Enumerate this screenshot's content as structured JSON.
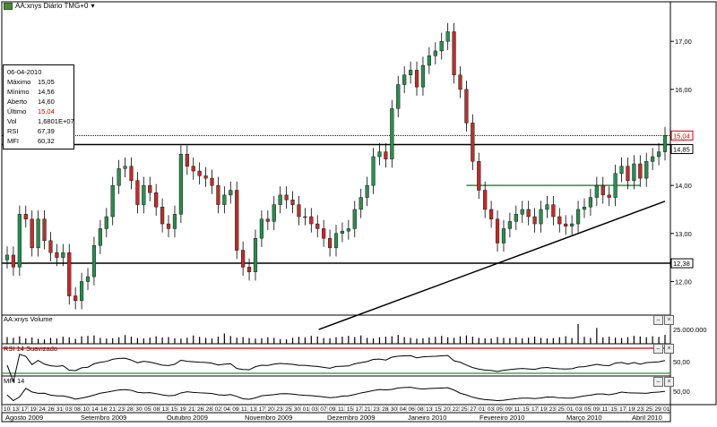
{
  "header": {
    "title": "AA:xnys Diário TMG+0",
    "dropdown_icon": "chevron-down-icon"
  },
  "info_box": {
    "date": "06-04-2010",
    "rows": [
      {
        "label": "Máximo",
        "value": "15,05"
      },
      {
        "label": "Mínimo",
        "value": "14,56"
      },
      {
        "label": "Aberto",
        "value": "14,60"
      },
      {
        "label": "Último",
        "value": "15,04",
        "highlight": true
      },
      {
        "label": "Vol",
        "value": "1,6801E+07"
      },
      {
        "label": "RSI",
        "value": "67,39"
      },
      {
        "label": "MFI",
        "value": "60,32"
      }
    ]
  },
  "panels": {
    "volume_title": "AA:xnys Volume",
    "volume_tick": "25.000.000",
    "rsi_title": "RSI 14 Suavizado",
    "rsi_tick": "50,00",
    "mfi_title": "MFI 14",
    "mfi_tick": "50,00"
  },
  "chart_data": {
    "type": "candlestick",
    "title": "AA:xnys Diário TMG+0",
    "y_ticks": [
      "17,00",
      "16,00",
      "15,00",
      "14,00",
      "13,00",
      "12,00"
    ],
    "ylim": [
      11.3,
      17.6
    ],
    "price_labels": {
      "last": "15,04",
      "resistance": "14,85",
      "support": "12,38"
    },
    "horizontal_lines": [
      {
        "name": "resistance",
        "value": 14.85,
        "color": "#000000"
      },
      {
        "name": "support",
        "value": 12.38,
        "color": "#000000"
      },
      {
        "name": "neckline",
        "value": 14.0,
        "color": "#2a8a4a"
      }
    ],
    "trendline": {
      "from_day": 4,
      "from_value": 11.0,
      "to_day": 142,
      "to_value": 13.67
    },
    "x_day_labels": [
      "10",
      "13",
      "17",
      "19",
      "24",
      "26",
      "31",
      "03",
      "08",
      "10",
      "14",
      "16",
      "21",
      "23",
      "28",
      "30",
      "05",
      "08",
      "13",
      "15",
      "19",
      "21",
      "26",
      "28",
      "02",
      "04",
      "09",
      "11",
      "13",
      "17",
      "20",
      "23",
      "25",
      "30",
      "01",
      "03",
      "07",
      "09",
      "11",
      "15",
      "17",
      "21",
      "23",
      "28",
      "30",
      "04",
      "06",
      "08",
      "13",
      "15",
      "20",
      "22",
      "25",
      "27",
      "01",
      "03",
      "05",
      "09",
      "11",
      "15",
      "17",
      "19",
      "23",
      "25",
      "01",
      "03",
      "05",
      "09",
      "11",
      "15",
      "17",
      "19",
      "23",
      "25",
      "29",
      "01"
    ],
    "x_month_labels": [
      "Agosto 2009",
      "Setembro 2009",
      "Outubro 2009",
      "Novembro 2009",
      "Dezembro 2009",
      "Janeiro 2010",
      "Fevereiro 2010",
      "Março 2010",
      "Abril 2010"
    ],
    "close_series": [
      12.55,
      12.3,
      13.4,
      13.3,
      12.7,
      13.3,
      12.85,
      12.6,
      12.5,
      12.6,
      11.7,
      11.6,
      12.0,
      12.1,
      12.75,
      13.1,
      13.35,
      14.0,
      14.35,
      14.4,
      14.1,
      13.6,
      14.0,
      13.85,
      13.55,
      13.2,
      13.1,
      13.4,
      14.65,
      14.4,
      14.3,
      14.2,
      14.15,
      14.0,
      13.6,
      13.8,
      13.9,
      12.65,
      12.3,
      12.2,
      12.9,
      13.3,
      13.25,
      13.6,
      13.8,
      13.7,
      13.6,
      13.35,
      13.35,
      13.2,
      13.1,
      12.9,
      12.7,
      13.0,
      13.05,
      13.1,
      13.5,
      13.75,
      14.0,
      14.6,
      14.7,
      14.55,
      15.6,
      16.1,
      16.3,
      16.4,
      16.05,
      16.5,
      16.7,
      16.8,
      17.0,
      17.2,
      16.3,
      16.0,
      15.3,
      14.5,
      13.9,
      13.5,
      13.3,
      12.8,
      13.1,
      13.25,
      13.4,
      13.5,
      13.35,
      13.2,
      13.5,
      13.6,
      13.35,
      13.2,
      13.15,
      13.2,
      13.5,
      13.55,
      13.75,
      14.0,
      13.8,
      13.75,
      14.25,
      14.4,
      14.1,
      14.45,
      14.15,
      14.5,
      14.6,
      14.7,
      15.04
    ],
    "volume_series": [
      0.34,
      0.3,
      0.38,
      0.28,
      0.32,
      0.25,
      0.22,
      0.3,
      0.27,
      0.36,
      0.33,
      0.25,
      0.38,
      0.4,
      0.42,
      0.3,
      0.26,
      0.28,
      0.33,
      0.44,
      0.36,
      0.29,
      0.27,
      0.31,
      0.38,
      0.32,
      0.34,
      0.28,
      0.26,
      0.31,
      0.42,
      0.35,
      0.3,
      0.27,
      0.36,
      0.52,
      0.39,
      0.31,
      0.34,
      0.29,
      0.26,
      0.28,
      0.33,
      0.3,
      0.24,
      0.22,
      0.3,
      0.35,
      0.32,
      0.4,
      0.37,
      0.29,
      0.28,
      0.33,
      0.36,
      0.4,
      0.34,
      0.42,
      0.3,
      0.27,
      0.33,
      0.36,
      0.38,
      0.45,
      0.34,
      0.3,
      0.26,
      0.28,
      0.32,
      0.35,
      0.4,
      0.33,
      0.3,
      0.38,
      0.42,
      0.36,
      0.3,
      0.28,
      0.27,
      0.34,
      0.3,
      0.29,
      0.33,
      0.28,
      0.31,
      0.36,
      0.3,
      0.27,
      0.29,
      0.33,
      0.38,
      0.29,
      1.0,
      0.35,
      0.3,
      0.8,
      0.32,
      0.36,
      0.31,
      0.29,
      0.34,
      0.4,
      0.37,
      0.33,
      0.38,
      0.35,
      0.45
    ]
  }
}
